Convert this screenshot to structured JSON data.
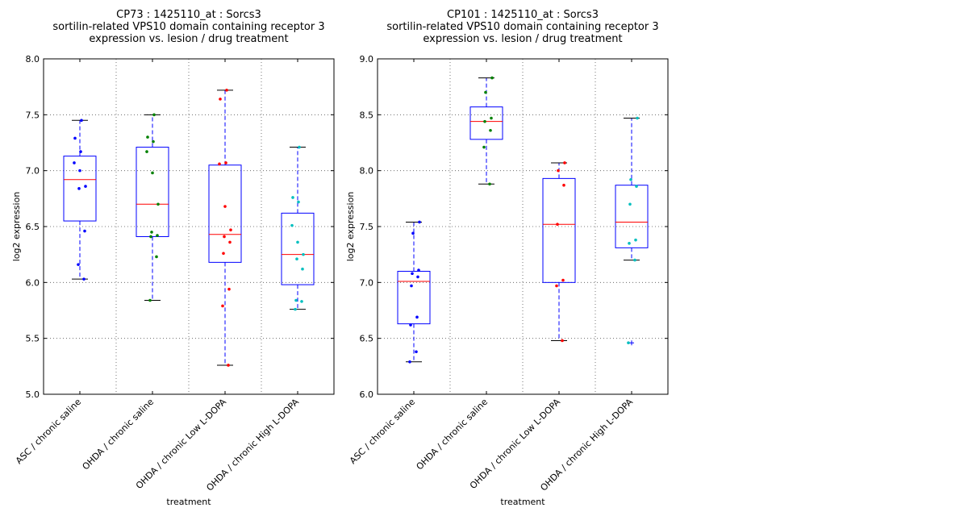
{
  "chart_data": [
    {
      "type": "box",
      "title": [
        "CP73 : 1425110_at : Sorcs3",
        "sortilin-related VPS10 domain containing receptor 3",
        "expression vs. lesion / drug treatment"
      ],
      "xlabel": "treatment",
      "ylabel": "log2 expression",
      "categories": [
        "ASC / chronic saline",
        "OHDA / chronic saline",
        "OHDA / chronic Low L-DOPA",
        "OHDA / chronic High L-DOPA"
      ],
      "ylim": [
        5,
        8
      ],
      "yticks": [
        {
          "value": 5,
          "label": "5.0"
        },
        5.5,
        {
          "value": 6,
          "label": "6.0"
        },
        6.5,
        {
          "value": 7,
          "label": "7.0"
        },
        7.5,
        {
          "value": 8,
          "label": "8.0"
        }
      ],
      "grid": true,
      "box_color": "#0000ff",
      "median_color": "#ff0000",
      "boxes": [
        {
          "min": 6.03,
          "q1": 6.55,
          "median": 6.92,
          "q3": 7.13,
          "max": 7.45,
          "color": "#0000ff",
          "points": [
            7.45,
            7.29,
            7.17,
            7.07,
            7.0,
            6.86,
            6.84,
            6.46,
            6.16,
            6.03
          ]
        },
        {
          "min": 5.84,
          "q1": 6.41,
          "median": 6.7,
          "q3": 7.21,
          "max": 7.5,
          "color": "#008000",
          "points": [
            7.5,
            7.3,
            7.26,
            7.17,
            6.98,
            6.7,
            6.45,
            6.42,
            6.41,
            6.23,
            5.84
          ]
        },
        {
          "min": 5.26,
          "q1": 6.18,
          "median": 6.43,
          "q3": 7.05,
          "max": 7.72,
          "color": "#ff0000",
          "points": [
            7.72,
            7.64,
            7.07,
            7.06,
            6.68,
            6.47,
            6.41,
            6.36,
            6.26,
            5.94,
            5.79,
            5.26
          ]
        },
        {
          "min": 5.76,
          "q1": 5.98,
          "median": 6.25,
          "q3": 6.62,
          "max": 7.21,
          "color": "#00bfbf",
          "points": [
            7.21,
            6.76,
            6.72,
            6.51,
            6.36,
            6.25,
            6.21,
            6.12,
            5.84,
            5.83,
            5.76
          ]
        }
      ]
    },
    {
      "type": "box",
      "title": [
        "CP101 : 1425110_at : Sorcs3",
        "sortilin-related VPS10 domain containing receptor 3",
        "expression vs. lesion / drug treatment"
      ],
      "xlabel": "treatment",
      "ylabel": "log2 expression",
      "categories": [
        "ASC / chronic saline",
        "OHDA / chronic saline",
        "OHDA / chronic Low L-DOPA",
        "OHDA / chronic High L-DOPA"
      ],
      "ylim": [
        6,
        9
      ],
      "yticks": [
        {
          "value": 6,
          "label": "6.0"
        },
        6.5,
        {
          "value": 7,
          "label": "7.0"
        },
        7.5,
        {
          "value": 8,
          "label": "8.0"
        },
        8.5,
        {
          "value": 9,
          "label": "9.0"
        }
      ],
      "grid": true,
      "box_color": "#0000ff",
      "median_color": "#ff0000",
      "boxes": [
        {
          "min": 6.29,
          "q1": 6.63,
          "median": 7.01,
          "q3": 7.1,
          "max": 7.54,
          "color": "#0000ff",
          "points": [
            7.54,
            7.44,
            7.11,
            7.08,
            7.05,
            6.97,
            6.69,
            6.62,
            6.38,
            6.29
          ]
        },
        {
          "min": 7.88,
          "q1": 8.28,
          "median": 8.44,
          "q3": 8.57,
          "max": 8.83,
          "color": "#008000",
          "points": [
            8.83,
            8.7,
            8.47,
            8.44,
            8.36,
            8.21,
            7.88
          ]
        },
        {
          "min": 6.48,
          "q1": 7.0,
          "median": 7.52,
          "q3": 7.93,
          "max": 8.07,
          "color": "#ff0000",
          "points": [
            8.07,
            8.0,
            7.87,
            7.52,
            7.02,
            6.97,
            6.48
          ]
        },
        {
          "min": 7.2,
          "q1": 7.31,
          "median": 7.54,
          "q3": 7.87,
          "max": 8.47,
          "color": "#00bfbf",
          "points": [
            8.47,
            7.92,
            7.86,
            7.7,
            7.38,
            7.35,
            7.2,
            6.46
          ],
          "outliers": [
            6.46
          ]
        }
      ]
    }
  ]
}
